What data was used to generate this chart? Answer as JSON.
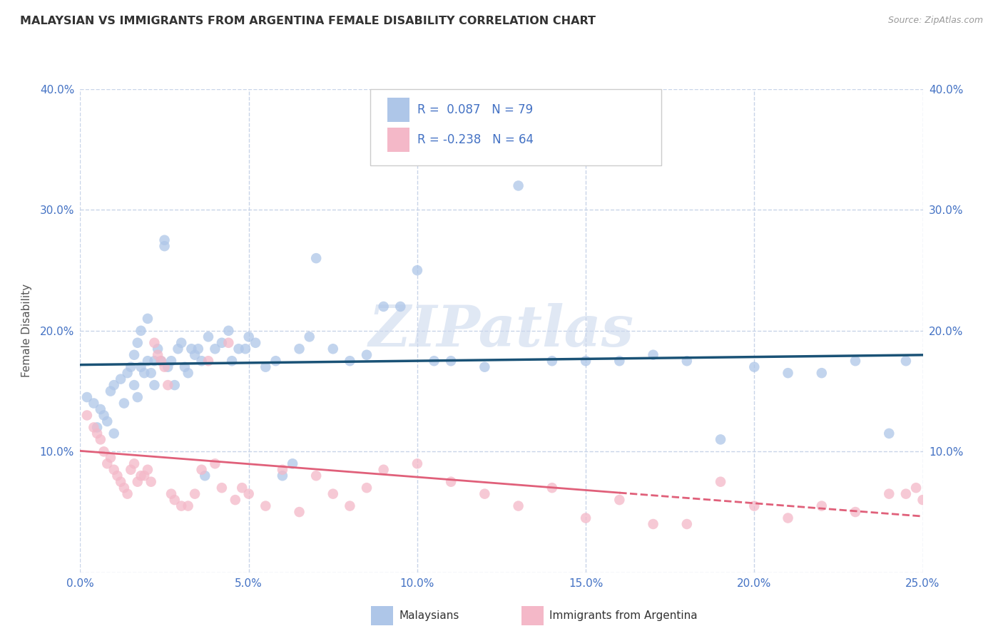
{
  "title": "MALAYSIAN VS IMMIGRANTS FROM ARGENTINA FEMALE DISABILITY CORRELATION CHART",
  "source": "Source: ZipAtlas.com",
  "ylabel": "Female Disability",
  "xlim": [
    0.0,
    0.25
  ],
  "ylim": [
    0.0,
    0.4
  ],
  "xticks": [
    0.0,
    0.05,
    0.1,
    0.15,
    0.2,
    0.25
  ],
  "yticks": [
    0.0,
    0.1,
    0.2,
    0.3,
    0.4
  ],
  "xtick_labels": [
    "0.0%",
    "5.0%",
    "10.0%",
    "15.0%",
    "20.0%",
    "25.0%"
  ],
  "ytick_labels": [
    "",
    "10.0%",
    "20.0%",
    "30.0%",
    "40.0%"
  ],
  "legend_label1": "Malaysians",
  "legend_label2": "Immigrants from Argentina",
  "R1": 0.087,
  "N1": 79,
  "R2": -0.238,
  "N2": 64,
  "color1": "#aec6e8",
  "color2": "#f4b8c8",
  "line_color1": "#1a5276",
  "line_color2": "#e0607a",
  "background_color": "#ffffff",
  "grid_color": "#c8d4e8",
  "watermark": "ZIPatlas",
  "malaysians_x": [
    0.002,
    0.004,
    0.005,
    0.006,
    0.007,
    0.008,
    0.009,
    0.01,
    0.01,
    0.012,
    0.013,
    0.014,
    0.015,
    0.016,
    0.016,
    0.017,
    0.017,
    0.018,
    0.018,
    0.019,
    0.02,
    0.02,
    0.021,
    0.022,
    0.022,
    0.023,
    0.024,
    0.025,
    0.025,
    0.026,
    0.027,
    0.028,
    0.029,
    0.03,
    0.031,
    0.032,
    0.033,
    0.034,
    0.035,
    0.036,
    0.037,
    0.038,
    0.04,
    0.042,
    0.044,
    0.045,
    0.047,
    0.049,
    0.05,
    0.052,
    0.055,
    0.058,
    0.06,
    0.063,
    0.065,
    0.068,
    0.07,
    0.075,
    0.08,
    0.085,
    0.09,
    0.095,
    0.1,
    0.105,
    0.11,
    0.12,
    0.13,
    0.14,
    0.15,
    0.16,
    0.17,
    0.18,
    0.19,
    0.2,
    0.21,
    0.22,
    0.23,
    0.24,
    0.245
  ],
  "malaysians_y": [
    0.145,
    0.14,
    0.12,
    0.135,
    0.13,
    0.125,
    0.15,
    0.155,
    0.115,
    0.16,
    0.14,
    0.165,
    0.17,
    0.155,
    0.18,
    0.19,
    0.145,
    0.2,
    0.17,
    0.165,
    0.21,
    0.175,
    0.165,
    0.175,
    0.155,
    0.185,
    0.175,
    0.27,
    0.275,
    0.17,
    0.175,
    0.155,
    0.185,
    0.19,
    0.17,
    0.165,
    0.185,
    0.18,
    0.185,
    0.175,
    0.08,
    0.195,
    0.185,
    0.19,
    0.2,
    0.175,
    0.185,
    0.185,
    0.195,
    0.19,
    0.17,
    0.175,
    0.08,
    0.09,
    0.185,
    0.195,
    0.26,
    0.185,
    0.175,
    0.18,
    0.22,
    0.22,
    0.25,
    0.175,
    0.175,
    0.17,
    0.32,
    0.175,
    0.175,
    0.175,
    0.18,
    0.175,
    0.11,
    0.17,
    0.165,
    0.165,
    0.175,
    0.115,
    0.175
  ],
  "argentina_x": [
    0.002,
    0.004,
    0.005,
    0.006,
    0.007,
    0.008,
    0.009,
    0.01,
    0.011,
    0.012,
    0.013,
    0.014,
    0.015,
    0.016,
    0.017,
    0.018,
    0.019,
    0.02,
    0.021,
    0.022,
    0.023,
    0.024,
    0.025,
    0.026,
    0.027,
    0.028,
    0.03,
    0.032,
    0.034,
    0.036,
    0.038,
    0.04,
    0.042,
    0.044,
    0.046,
    0.048,
    0.05,
    0.055,
    0.06,
    0.065,
    0.07,
    0.075,
    0.08,
    0.085,
    0.09,
    0.1,
    0.11,
    0.12,
    0.13,
    0.14,
    0.15,
    0.16,
    0.17,
    0.18,
    0.19,
    0.2,
    0.21,
    0.22,
    0.23,
    0.24,
    0.245,
    0.248,
    0.25,
    0.252
  ],
  "argentina_y": [
    0.13,
    0.12,
    0.115,
    0.11,
    0.1,
    0.09,
    0.095,
    0.085,
    0.08,
    0.075,
    0.07,
    0.065,
    0.085,
    0.09,
    0.075,
    0.08,
    0.08,
    0.085,
    0.075,
    0.19,
    0.18,
    0.175,
    0.17,
    0.155,
    0.065,
    0.06,
    0.055,
    0.055,
    0.065,
    0.085,
    0.175,
    0.09,
    0.07,
    0.19,
    0.06,
    0.07,
    0.065,
    0.055,
    0.085,
    0.05,
    0.08,
    0.065,
    0.055,
    0.07,
    0.085,
    0.09,
    0.075,
    0.065,
    0.055,
    0.07,
    0.045,
    0.06,
    0.04,
    0.04,
    0.075,
    0.055,
    0.045,
    0.055,
    0.05,
    0.065,
    0.065,
    0.07,
    0.06,
    0.055
  ]
}
